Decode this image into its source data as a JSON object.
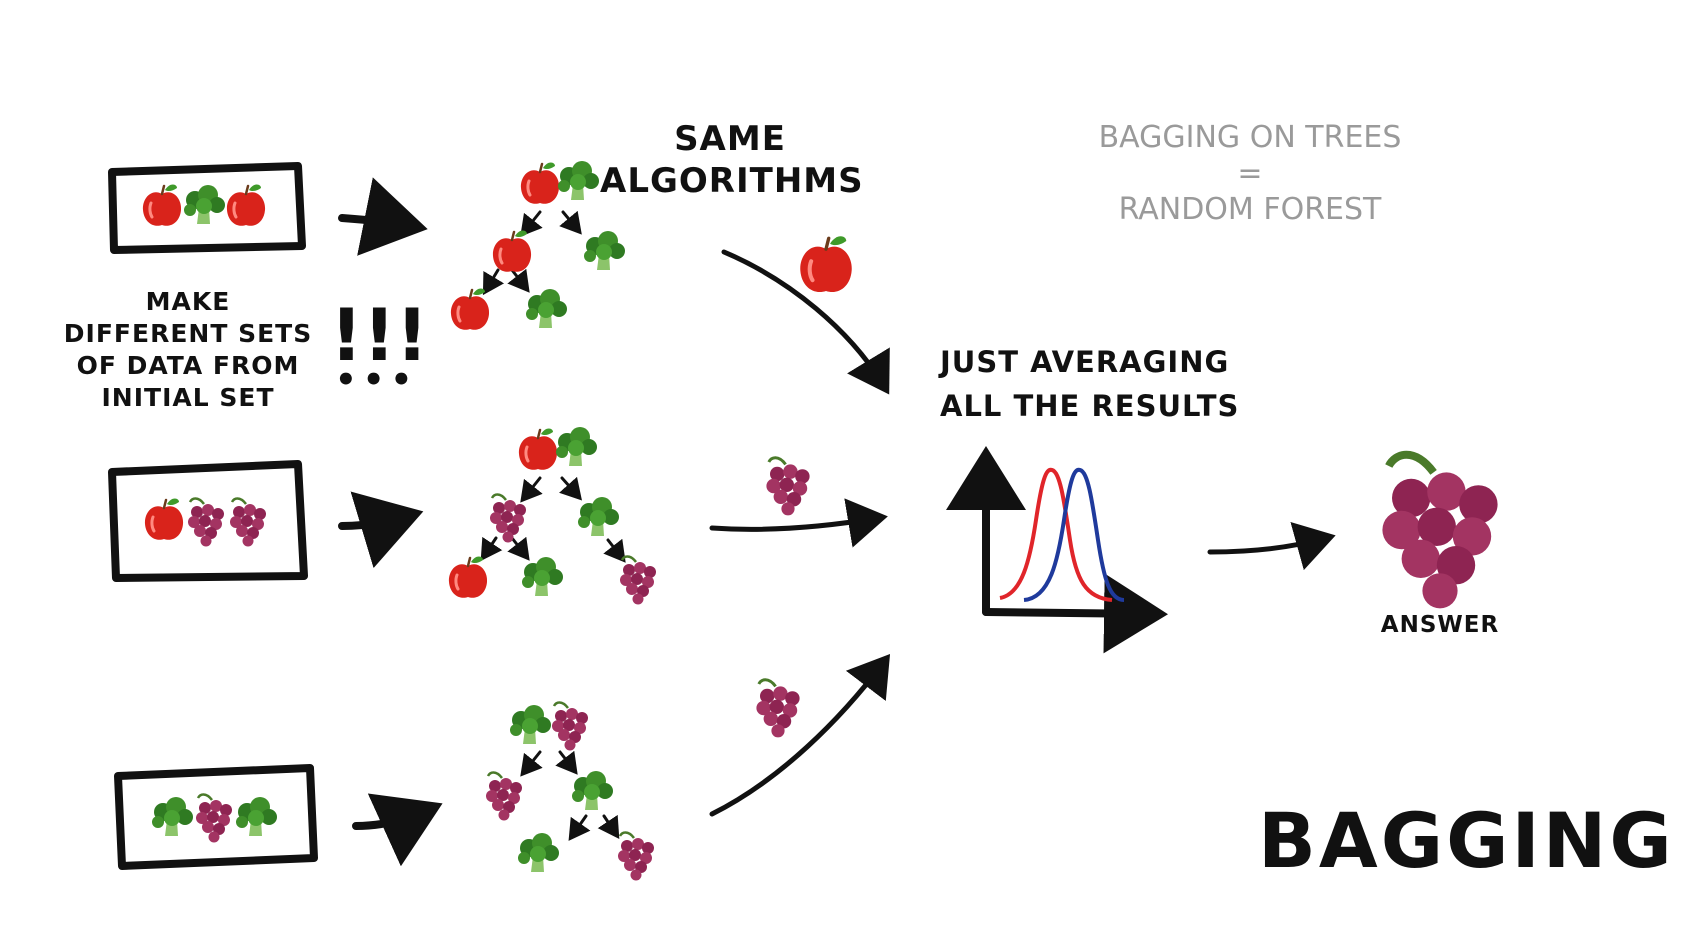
{
  "labels": {
    "same_algorithms": [
      "SAME",
      "ALGORITHMS"
    ],
    "make_sets": [
      "MAKE",
      "DIFFERENT SETS",
      "OF DATA FROM",
      "INITIAL SET"
    ],
    "exclaim": "!!!",
    "dots": "•••",
    "averaging": [
      "JUST AVERAGING",
      "ALL THE RESULTS"
    ],
    "random_forest": [
      "BAGGING ON TREES",
      "=",
      "RANDOM FOREST"
    ],
    "answer": "ANSWER",
    "bagging": "BAGGING"
  },
  "colors": {
    "ink": "#111111",
    "apple": "#d9231b",
    "broccoli": "#3f8f2a",
    "grape": "#9b2d5a",
    "curve_red": "#e0252a",
    "curve_blue": "#1f3a9c",
    "gray_text": "#9a9a9a"
  },
  "datasets": [
    [
      "apple-icon",
      "broccoli-icon",
      "apple-icon"
    ],
    [
      "apple-icon",
      "grape-icon",
      "grape-icon"
    ],
    [
      "broccoli-icon",
      "grape-icon",
      "broccoli-icon"
    ]
  ],
  "tree_outputs": [
    "apple-icon",
    "grape-icon",
    "grape-icon"
  ],
  "final_answer": "grape-icon"
}
